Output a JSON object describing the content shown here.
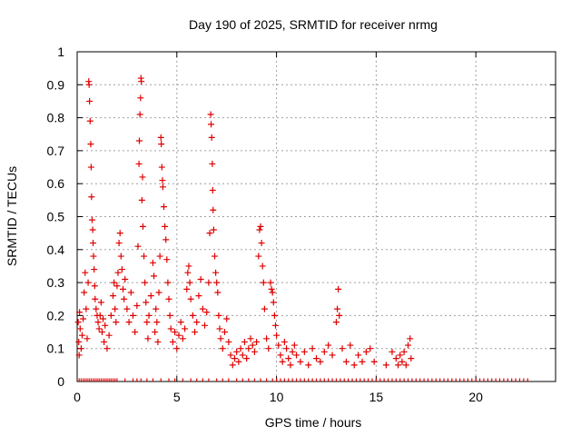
{
  "chart_data": {
    "type": "scatter",
    "title": "Day 190 of 2025, SRMTID for receiver nrmg",
    "xlabel": "GPS time / hours",
    "ylabel": "SRMTID / TECUs",
    "xlim": [
      0,
      24
    ],
    "ylim": [
      0,
      1
    ],
    "xticks": [
      "0",
      "5",
      "10",
      "15",
      "20"
    ],
    "yticks": [
      "0",
      "0.1",
      "0.2",
      "0.3",
      "0.4",
      "0.5",
      "0.6",
      "0.7",
      "0.8",
      "0.9",
      "1"
    ],
    "grid": true,
    "marker": "+",
    "color": "#e00000",
    "series": [
      {
        "name": "SRMTID",
        "points": [
          [
            0.05,
            0.18
          ],
          [
            0.08,
            0.12
          ],
          [
            0.1,
            0.08
          ],
          [
            0.12,
            0.21
          ],
          [
            0.15,
            0.16
          ],
          [
            0.2,
            0.1
          ],
          [
            0.25,
            0.14
          ],
          [
            0.3,
            0.19
          ],
          [
            0.35,
            0.27
          ],
          [
            0.4,
            0.33
          ],
          [
            0.45,
            0.22
          ],
          [
            0.5,
            0.13
          ],
          [
            0.55,
            0.3
          ],
          [
            0.58,
            0.91
          ],
          [
            0.6,
            0.9
          ],
          [
            0.62,
            0.85
          ],
          [
            0.65,
            0.79
          ],
          [
            0.68,
            0.72
          ],
          [
            0.7,
            0.65
          ],
          [
            0.72,
            0.56
          ],
          [
            0.75,
            0.49
          ],
          [
            0.78,
            0.46
          ],
          [
            0.8,
            0.42
          ],
          [
            0.82,
            0.38
          ],
          [
            0.85,
            0.34
          ],
          [
            0.88,
            0.29
          ],
          [
            0.9,
            0.25
          ],
          [
            0.95,
            0.22
          ],
          [
            1.0,
            0.2
          ],
          [
            1.05,
            0.18
          ],
          [
            1.1,
            0.16
          ],
          [
            1.15,
            0.2
          ],
          [
            1.2,
            0.24
          ],
          [
            1.25,
            0.15
          ],
          [
            1.3,
            0.19
          ],
          [
            1.35,
            0.12
          ],
          [
            1.4,
            0.17
          ],
          [
            1.5,
            0.1
          ],
          [
            1.6,
            0.14
          ],
          [
            1.7,
            0.2
          ],
          [
            1.8,
            0.26
          ],
          [
            1.85,
            0.3
          ],
          [
            1.9,
            0.22
          ],
          [
            1.95,
            0.18
          ],
          [
            2.0,
            0.29
          ],
          [
            2.05,
            0.33
          ],
          [
            2.1,
            0.42
          ],
          [
            2.15,
            0.45
          ],
          [
            2.2,
            0.38
          ],
          [
            2.25,
            0.34
          ],
          [
            2.3,
            0.28
          ],
          [
            2.35,
            0.25
          ],
          [
            2.4,
            0.31
          ],
          [
            2.5,
            0.22
          ],
          [
            2.6,
            0.18
          ],
          [
            2.7,
            0.27
          ],
          [
            2.8,
            0.2
          ],
          [
            2.9,
            0.15
          ],
          [
            3.0,
            0.23
          ],
          [
            3.05,
            0.41
          ],
          [
            3.1,
            0.66
          ],
          [
            3.12,
            0.73
          ],
          [
            3.15,
            0.81
          ],
          [
            3.18,
            0.86
          ],
          [
            3.2,
            0.92
          ],
          [
            3.22,
            0.91
          ],
          [
            3.25,
            0.55
          ],
          [
            3.28,
            0.62
          ],
          [
            3.3,
            0.47
          ],
          [
            3.35,
            0.38
          ],
          [
            3.4,
            0.3
          ],
          [
            3.45,
            0.24
          ],
          [
            3.5,
            0.18
          ],
          [
            3.55,
            0.13
          ],
          [
            3.6,
            0.2
          ],
          [
            3.7,
            0.26
          ],
          [
            3.8,
            0.36
          ],
          [
            3.85,
            0.32
          ],
          [
            3.9,
            0.15
          ],
          [
            3.95,
            0.22
          ],
          [
            4.0,
            0.18
          ],
          [
            4.05,
            0.12
          ],
          [
            4.1,
            0.27
          ],
          [
            4.15,
            0.38
          ],
          [
            4.2,
            0.74
          ],
          [
            4.22,
            0.72
          ],
          [
            4.25,
            0.65
          ],
          [
            4.28,
            0.61
          ],
          [
            4.3,
            0.59
          ],
          [
            4.35,
            0.53
          ],
          [
            4.4,
            0.47
          ],
          [
            4.45,
            0.43
          ],
          [
            4.5,
            0.37
          ],
          [
            4.55,
            0.3
          ],
          [
            4.6,
            0.25
          ],
          [
            4.65,
            0.2
          ],
          [
            4.7,
            0.16
          ],
          [
            4.8,
            0.12
          ],
          [
            4.9,
            0.15
          ],
          [
            5.0,
            0.1
          ],
          [
            5.1,
            0.14
          ],
          [
            5.2,
            0.18
          ],
          [
            5.3,
            0.13
          ],
          [
            5.4,
            0.16
          ],
          [
            5.5,
            0.28
          ],
          [
            5.55,
            0.33
          ],
          [
            5.6,
            0.35
          ],
          [
            5.65,
            0.3
          ],
          [
            5.7,
            0.25
          ],
          [
            5.8,
            0.2
          ],
          [
            5.9,
            0.15
          ],
          [
            6.0,
            0.18
          ],
          [
            6.1,
            0.26
          ],
          [
            6.2,
            0.31
          ],
          [
            6.3,
            0.22
          ],
          [
            6.4,
            0.17
          ],
          [
            6.5,
            0.21
          ],
          [
            6.6,
            0.3
          ],
          [
            6.65,
            0.45
          ],
          [
            6.7,
            0.81
          ],
          [
            6.72,
            0.78
          ],
          [
            6.75,
            0.74
          ],
          [
            6.78,
            0.66
          ],
          [
            6.8,
            0.58
          ],
          [
            6.82,
            0.52
          ],
          [
            6.85,
            0.46
          ],
          [
            6.9,
            0.38
          ],
          [
            6.95,
            0.33
          ],
          [
            7.0,
            0.3
          ],
          [
            7.05,
            0.27
          ],
          [
            7.1,
            0.2
          ],
          [
            7.15,
            0.16
          ],
          [
            7.2,
            0.13
          ],
          [
            7.3,
            0.1
          ],
          [
            7.4,
            0.15
          ],
          [
            7.5,
            0.19
          ],
          [
            7.6,
            0.12
          ],
          [
            7.7,
            0.08
          ],
          [
            7.8,
            0.05
          ],
          [
            7.9,
            0.07
          ],
          [
            8.0,
            0.09
          ],
          [
            8.1,
            0.06
          ],
          [
            8.2,
            0.1
          ],
          [
            8.3,
            0.08
          ],
          [
            8.4,
            0.12
          ],
          [
            8.5,
            0.07
          ],
          [
            8.6,
            0.1
          ],
          [
            8.7,
            0.13
          ],
          [
            8.8,
            0.11
          ],
          [
            8.9,
            0.09
          ],
          [
            9.0,
            0.12
          ],
          [
            9.1,
            0.38
          ],
          [
            9.15,
            0.46
          ],
          [
            9.2,
            0.47
          ],
          [
            9.25,
            0.42
          ],
          [
            9.3,
            0.35
          ],
          [
            9.35,
            0.3
          ],
          [
            9.4,
            0.22
          ],
          [
            9.5,
            0.13
          ],
          [
            9.6,
            0.1
          ],
          [
            9.7,
            0.3
          ],
          [
            9.75,
            0.28
          ],
          [
            9.8,
            0.27
          ],
          [
            9.85,
            0.24
          ],
          [
            9.9,
            0.2
          ],
          [
            9.95,
            0.17
          ],
          [
            10.0,
            0.14
          ],
          [
            10.1,
            0.11
          ],
          [
            10.2,
            0.08
          ],
          [
            10.3,
            0.06
          ],
          [
            10.4,
            0.12
          ],
          [
            10.5,
            0.1
          ],
          [
            10.6,
            0.07
          ],
          [
            10.7,
            0.05
          ],
          [
            10.8,
            0.09
          ],
          [
            10.9,
            0.11
          ],
          [
            11.0,
            0.08
          ],
          [
            11.2,
            0.06
          ],
          [
            11.4,
            0.09
          ],
          [
            11.6,
            0.05
          ],
          [
            11.8,
            0.1
          ],
          [
            12.0,
            0.07
          ],
          [
            12.2,
            0.06
          ],
          [
            12.4,
            0.09
          ],
          [
            12.6,
            0.11
          ],
          [
            12.8,
            0.08
          ],
          [
            13.0,
            0.18
          ],
          [
            13.05,
            0.22
          ],
          [
            13.1,
            0.28
          ],
          [
            13.15,
            0.2
          ],
          [
            13.3,
            0.1
          ],
          [
            13.5,
            0.06
          ],
          [
            13.7,
            0.11
          ],
          [
            13.9,
            0.05
          ],
          [
            14.1,
            0.08
          ],
          [
            14.3,
            0.06
          ],
          [
            14.5,
            0.09
          ],
          [
            14.7,
            0.1
          ],
          [
            14.9,
            0.06
          ],
          [
            15.5,
            0.05
          ],
          [
            15.8,
            0.09
          ],
          [
            16.0,
            0.07
          ],
          [
            16.1,
            0.05
          ],
          [
            16.2,
            0.08
          ],
          [
            16.3,
            0.06
          ],
          [
            16.4,
            0.09
          ],
          [
            16.5,
            0.05
          ],
          [
            16.6,
            0.11
          ],
          [
            16.7,
            0.13
          ],
          [
            16.75,
            0.07
          ]
        ],
        "zero_hours": [
          0.1,
          0.2,
          0.3,
          0.4,
          0.5,
          0.6,
          0.7,
          0.8,
          0.9,
          1.0,
          1.1,
          1.2,
          1.3,
          1.4,
          1.5,
          1.6,
          1.7,
          1.8,
          1.9,
          2.0,
          2.4,
          2.8,
          3.0,
          3.2,
          3.5,
          3.8,
          4.2,
          4.6,
          4.9,
          5.3,
          5.7,
          6.0,
          6.3,
          6.6,
          7.0,
          7.3,
          7.6,
          8.0,
          8.3,
          8.6,
          8.9,
          9.2,
          9.5,
          9.8,
          10.0,
          10.2,
          10.4,
          10.6,
          10.8,
          11.0,
          11.2,
          11.4,
          11.6,
          11.8,
          12.0,
          12.2,
          12.4,
          12.6,
          12.8,
          13.0,
          13.2,
          13.4,
          13.6,
          13.8,
          14.0,
          14.2,
          14.4,
          14.6,
          14.8,
          15.0,
          15.2,
          15.4,
          15.6,
          15.8,
          16.0,
          16.2,
          16.4,
          16.6,
          16.8,
          17.0,
          17.2,
          17.4,
          17.6,
          17.8,
          18.0,
          18.2,
          18.4,
          18.6,
          18.8,
          19.0,
          19.2,
          19.4,
          19.6,
          19.8,
          20.0,
          20.2,
          20.4,
          20.6,
          20.8,
          21.0,
          21.2,
          21.4,
          21.6,
          21.8,
          22.0,
          22.2,
          22.4,
          22.6
        ]
      }
    ]
  }
}
